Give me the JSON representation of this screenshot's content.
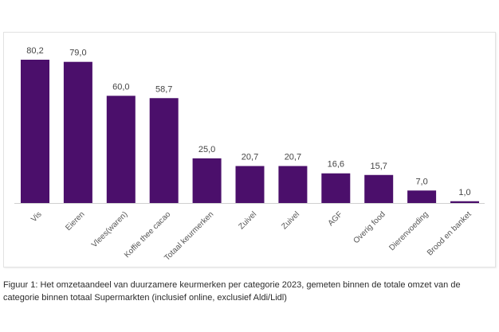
{
  "chart_data": {
    "type": "bar",
    "title": "",
    "xlabel": "",
    "ylabel": "",
    "ylim": [
      0,
      80.2
    ],
    "grid": false,
    "legend": "none",
    "bar_color": "#4b0f6b",
    "categories": [
      "Vis",
      "Eieren",
      "Vlees(waren)",
      "Koffie thee cacao",
      "Totaal keurmerken",
      "Zuivel",
      "Zuivel",
      "AGF",
      "Overig food",
      "Dierenvoeding",
      "Brood en banket"
    ],
    "values": [
      80.2,
      79.0,
      60.0,
      58.7,
      25.0,
      20.7,
      20.7,
      16.6,
      15.7,
      7.0,
      1.0
    ],
    "value_labels": [
      "80,2",
      "79,0",
      "60,0",
      "58,7",
      "25,0",
      "20,7",
      "20,7",
      "16,6",
      "15,7",
      "7,0",
      "1,0"
    ]
  },
  "caption": "Figuur 1: Het omzetaandeel van duurzamere keurmerken per categorie 2023, gemeten binnen de totale omzet van de categorie binnen totaal Supermarkten (inclusief online, exclusief Aldi/Lidl)"
}
